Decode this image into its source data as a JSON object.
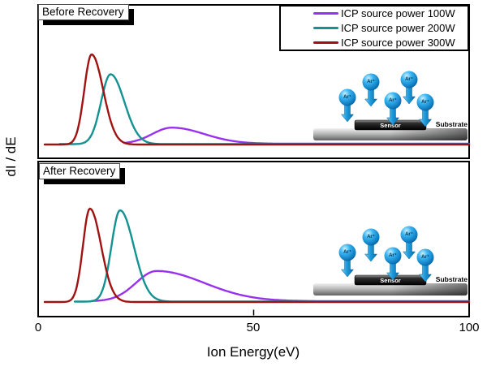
{
  "figure": {
    "xlabel": "Ion Energy(eV)",
    "ylabel": "dI / dE"
  },
  "legend": {
    "position": "top-right",
    "entries": [
      {
        "label": "ICP source power 100W",
        "color": "#9830F0"
      },
      {
        "label": "ICP source power 200W",
        "color": "#149191"
      },
      {
        "label": "ICP source power 300W",
        "color": "#A01212"
      }
    ]
  },
  "inset": {
    "ion_label": "Ar⁺",
    "sensor_label": "Sensor",
    "substrate_label": "Substrate",
    "ion_count": 5
  },
  "chart_data": {
    "type": "line",
    "title": "",
    "xlabel": "Ion Energy(eV)",
    "ylabel": "dI / dE",
    "xlim": [
      0,
      100
    ],
    "xticks": [
      0,
      50,
      100
    ],
    "yticks": [],
    "grid": false,
    "legend_position": "top-right",
    "panels": [
      {
        "label": "Before Recovery",
        "series": [
          {
            "name": "ICP source power 100W",
            "color": "#9830F0",
            "peak_eV": 31,
            "peak_height_rel": 0.115,
            "sigma_left_eV": 4.5,
            "sigma_right_eV": 7.5,
            "onset_eV": 20
          },
          {
            "name": "ICP source power 200W",
            "color": "#149191",
            "peak_eV": 16.8,
            "peak_height_rel": 0.5,
            "sigma_left_eV": 2.2,
            "sigma_right_eV": 3.2,
            "onset_eV": 5
          },
          {
            "name": "ICP source power 300W",
            "color": "#A01212",
            "peak_eV": 12.4,
            "peak_height_rel": 0.645,
            "sigma_left_eV": 1.7,
            "sigma_right_eV": 2.7,
            "onset_eV": 1.5
          }
        ]
      },
      {
        "label": "After Recovery",
        "series": [
          {
            "name": "ICP source power 100W",
            "color": "#9830F0",
            "peak_eV": 27.5,
            "peak_height_rel": 0.215,
            "sigma_left_eV": 4.8,
            "sigma_right_eV": 11.0,
            "onset_eV": 12.5
          },
          {
            "name": "ICP source power 200W",
            "color": "#149191",
            "peak_eV": 19,
            "peak_height_rel": 0.65,
            "sigma_left_eV": 2.0,
            "sigma_right_eV": 3.2,
            "onset_eV": 8.5
          },
          {
            "name": "ICP source power 300W",
            "color": "#A01212",
            "peak_eV": 12,
            "peak_height_rel": 0.665,
            "sigma_left_eV": 1.6,
            "sigma_right_eV": 2.6,
            "onset_eV": 1.5
          }
        ]
      }
    ]
  }
}
